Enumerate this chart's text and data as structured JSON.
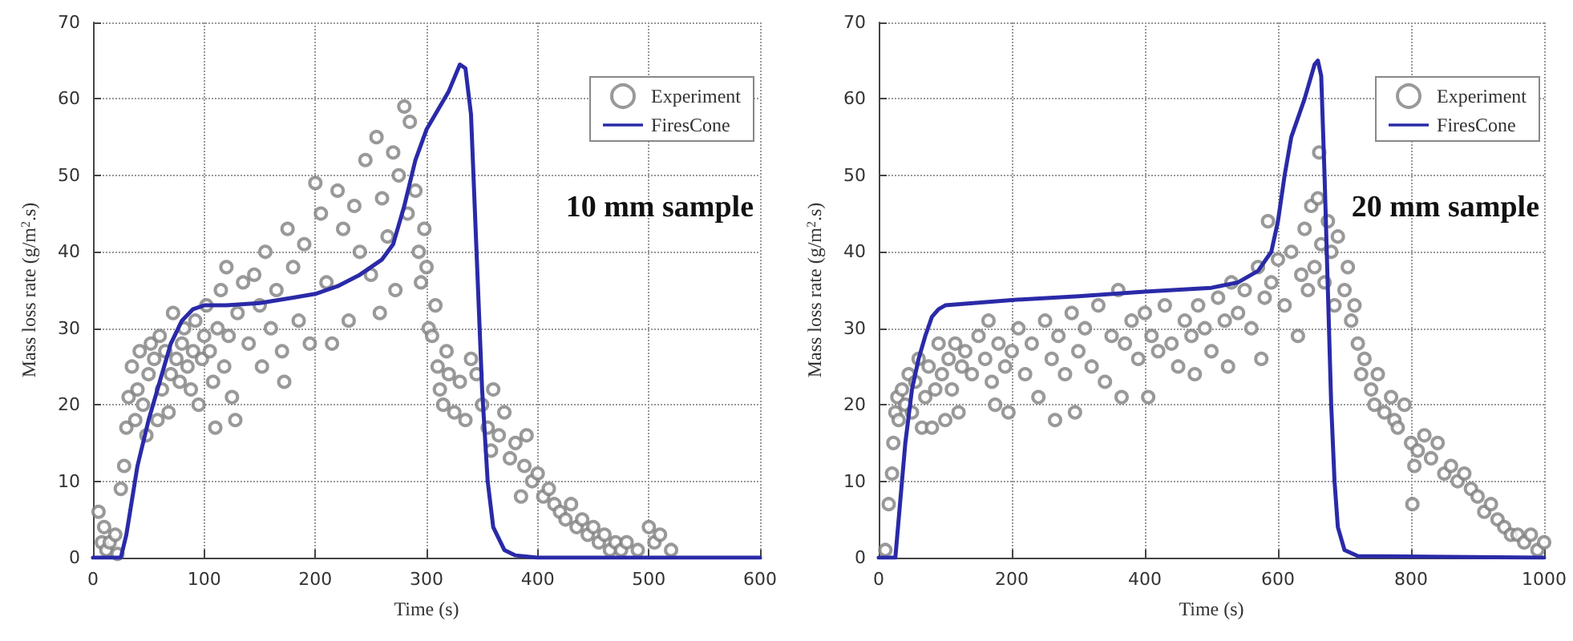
{
  "chart_data": [
    {
      "type": "scatter",
      "xlabel": "Time (s)",
      "ylabel": "Mass loss rate (g/m$^{2}$.s)",
      "annotations": [
        "10 mm sample"
      ],
      "xlim": [
        0,
        600
      ],
      "xticks": [
        0,
        100,
        200,
        300,
        400,
        500,
        600
      ],
      "ylim": [
        0,
        70
      ],
      "yticks": [
        0,
        10,
        20,
        30,
        40,
        50,
        60,
        70
      ],
      "grid": true,
      "legend": "top right",
      "series": [
        {
          "name": "Experiment",
          "marker": "circle",
          "color": "#808080",
          "x": [
            5,
            8,
            10,
            12,
            15,
            20,
            22,
            25,
            28,
            30,
            32,
            35,
            38,
            40,
            42,
            45,
            48,
            50,
            52,
            55,
            58,
            60,
            62,
            65,
            68,
            70,
            72,
            75,
            78,
            80,
            82,
            85,
            88,
            90,
            92,
            95,
            98,
            100,
            102,
            105,
            108,
            110,
            112,
            115,
            118,
            120,
            122,
            125,
            128,
            130,
            135,
            140,
            145,
            150,
            152,
            155,
            160,
            165,
            170,
            172,
            175,
            180,
            185,
            190,
            195,
            200,
            205,
            210,
            215,
            220,
            225,
            230,
            235,
            240,
            245,
            250,
            255,
            258,
            260,
            265,
            270,
            272,
            275,
            280,
            283,
            285,
            290,
            293,
            295,
            298,
            300,
            302,
            305,
            308,
            310,
            312,
            315,
            318,
            320,
            325,
            330,
            335,
            340,
            345,
            350,
            355,
            358,
            360,
            365,
            370,
            375,
            380,
            385,
            388,
            390,
            395,
            400,
            405,
            410,
            415,
            420,
            425,
            430,
            435,
            440,
            445,
            450,
            455,
            460,
            465,
            470,
            475,
            480,
            490,
            500,
            505,
            510,
            520
          ],
          "values": [
            6,
            2,
            4,
            1,
            2,
            3,
            0.5,
            9,
            12,
            17,
            21,
            25,
            18,
            22,
            27,
            20,
            16,
            24,
            28,
            26,
            18,
            29,
            22,
            27,
            19,
            24,
            32,
            26,
            23,
            28,
            30,
            25,
            22,
            27,
            31,
            20,
            26,
            29,
            33,
            27,
            23,
            17,
            30,
            35,
            25,
            38,
            29,
            21,
            18,
            32,
            36,
            28,
            37,
            33,
            25,
            40,
            30,
            35,
            27,
            23,
            43,
            38,
            31,
            41,
            28,
            49,
            45,
            36,
            28,
            48,
            43,
            31,
            46,
            40,
            52,
            37,
            55,
            32,
            47,
            42,
            53,
            35,
            50,
            59,
            45,
            57,
            48,
            40,
            36,
            43,
            38,
            30,
            29,
            33,
            25,
            22,
            20,
            27,
            24,
            19,
            23,
            18,
            26,
            24,
            20,
            17,
            14,
            22,
            16,
            19,
            13,
            15,
            8,
            12,
            16,
            10,
            11,
            8,
            9,
            7,
            6,
            5,
            7,
            4,
            5,
            3,
            4,
            2,
            3,
            1,
            2,
            1,
            2,
            1,
            4,
            2,
            3,
            1
          ]
        },
        {
          "name": "FiresCone",
          "type": "line",
          "marker": "none",
          "line_style": "solid",
          "color": "#2a2aa8",
          "x": [
            0,
            25,
            30,
            40,
            50,
            60,
            70,
            80,
            90,
            100,
            120,
            150,
            180,
            200,
            220,
            240,
            260,
            270,
            280,
            290,
            300,
            320,
            330,
            335,
            340,
            345,
            350,
            355,
            360,
            370,
            380,
            400,
            600
          ],
          "values": [
            0,
            0,
            3,
            12,
            18,
            23,
            28,
            31,
            32.5,
            33,
            33,
            33.3,
            34,
            34.5,
            35.5,
            37,
            39,
            41,
            46,
            52,
            56,
            61,
            64.5,
            64,
            58,
            40,
            22,
            10,
            4,
            1,
            0.3,
            0,
            0
          ]
        }
      ]
    },
    {
      "type": "scatter",
      "xlabel": "Time (s)",
      "ylabel": "Mass loss rate (g/m$^{2}$.s)",
      "annotations": [
        "20 mm sample"
      ],
      "xlim": [
        0,
        1000
      ],
      "xticks": [
        0,
        200,
        400,
        600,
        800,
        1000
      ],
      "ylim": [
        0,
        70
      ],
      "yticks": [
        0,
        10,
        20,
        30,
        40,
        50,
        60,
        70
      ],
      "grid": true,
      "legend": "top right",
      "series": [
        {
          "name": "Experiment",
          "marker": "circle",
          "color": "#808080",
          "x": [
            10,
            15,
            20,
            22,
            25,
            28,
            30,
            35,
            40,
            45,
            50,
            55,
            60,
            65,
            70,
            75,
            80,
            85,
            90,
            95,
            100,
            105,
            110,
            115,
            120,
            125,
            130,
            140,
            150,
            160,
            165,
            170,
            175,
            180,
            190,
            195,
            200,
            210,
            220,
            230,
            240,
            250,
            260,
            265,
            270,
            280,
            290,
            295,
            300,
            310,
            320,
            330,
            340,
            350,
            360,
            365,
            370,
            380,
            390,
            400,
            405,
            410,
            420,
            430,
            440,
            450,
            460,
            470,
            475,
            480,
            490,
            500,
            510,
            520,
            525,
            530,
            540,
            550,
            560,
            570,
            575,
            580,
            585,
            590,
            600,
            610,
            620,
            630,
            635,
            640,
            645,
            650,
            655,
            660,
            662,
            665,
            670,
            675,
            680,
            685,
            690,
            700,
            705,
            710,
            715,
            720,
            725,
            730,
            740,
            745,
            750,
            760,
            770,
            775,
            780,
            790,
            800,
            802,
            805,
            810,
            820,
            830,
            840,
            850,
            860,
            870,
            880,
            890,
            900,
            910,
            920,
            930,
            940,
            950,
            960,
            970,
            980,
            990,
            1000
          ],
          "values": [
            1,
            7,
            11,
            15,
            19,
            21,
            18,
            22,
            20,
            24,
            19,
            23,
            26,
            17,
            21,
            25,
            17,
            22,
            28,
            24,
            18,
            26,
            22,
            28,
            19,
            25,
            27,
            24,
            29,
            26,
            31,
            23,
            20,
            28,
            25,
            19,
            27,
            30,
            24,
            28,
            21,
            31,
            26,
            18,
            29,
            24,
            32,
            19,
            27,
            30,
            25,
            33,
            23,
            29,
            35,
            21,
            28,
            31,
            26,
            32,
            21,
            29,
            27,
            33,
            28,
            25,
            31,
            29,
            24,
            33,
            30,
            27,
            34,
            31,
            25,
            36,
            32,
            35,
            30,
            38,
            26,
            34,
            44,
            36,
            39,
            33,
            40,
            29,
            37,
            43,
            35,
            46,
            38,
            47,
            53,
            41,
            36,
            44,
            40,
            33,
            42,
            35,
            38,
            31,
            33,
            28,
            24,
            26,
            22,
            20,
            24,
            19,
            21,
            18,
            17,
            20,
            15,
            7,
            12,
            14,
            16,
            13,
            15,
            11,
            12,
            10,
            11,
            9,
            8,
            6,
            7,
            5,
            4,
            3,
            3,
            2,
            3,
            1,
            2
          ]
        },
        {
          "name": "FiresCone",
          "type": "line",
          "marker": "none",
          "line_style": "solid",
          "color": "#2a2aa8",
          "x": [
            0,
            25,
            30,
            40,
            50,
            60,
            70,
            80,
            90,
            100,
            200,
            300,
            400,
            500,
            540,
            570,
            590,
            600,
            610,
            620,
            640,
            655,
            660,
            665,
            670,
            675,
            680,
            685,
            690,
            700,
            720,
            1000
          ],
          "values": [
            0,
            0,
            5,
            15,
            22,
            26,
            29,
            31.5,
            32.5,
            33,
            33.7,
            34.2,
            34.8,
            35.3,
            36,
            37.5,
            40,
            44,
            50,
            55,
            60,
            64.5,
            65,
            63,
            50,
            35,
            20,
            10,
            4,
            1,
            0.2,
            0
          ]
        }
      ]
    }
  ]
}
